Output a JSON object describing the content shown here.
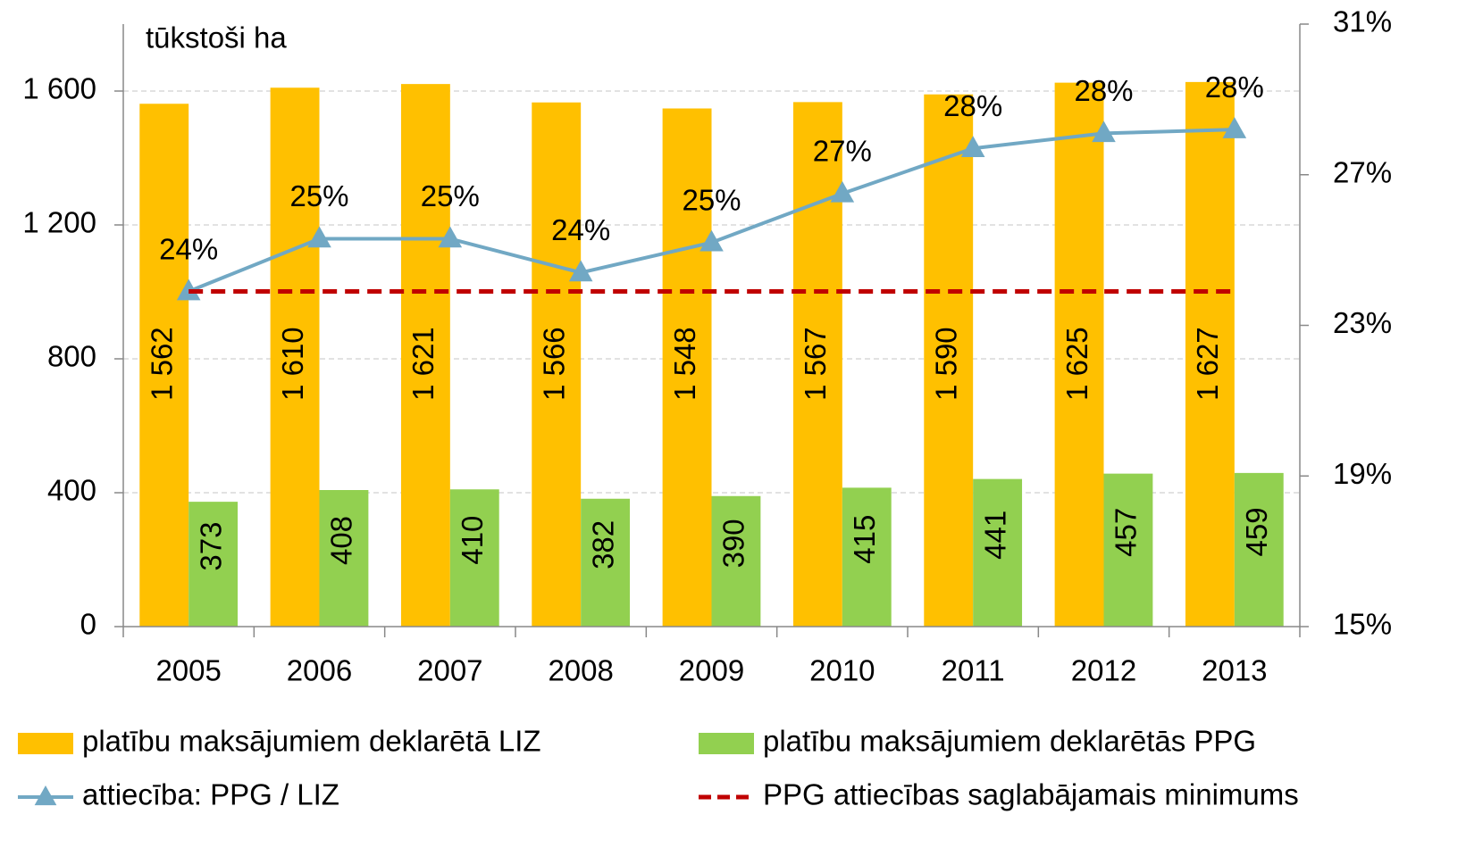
{
  "chart_data": {
    "type": "bar",
    "unit_label": "tūkstoši ha",
    "categories": [
      "2005",
      "2006",
      "2007",
      "2008",
      "2009",
      "2010",
      "2011",
      "2012",
      "2013"
    ],
    "series": [
      {
        "name": "platību maksājumiem deklarētā LIZ",
        "type": "bar",
        "color": "#ffc000",
        "values": [
          1562,
          1610,
          1621,
          1566,
          1548,
          1567,
          1590,
          1625,
          1627
        ],
        "value_labels": [
          "1 562",
          "1 610",
          "1 621",
          "1 566",
          "1 548",
          "1 567",
          "1 590",
          "1 625",
          "1 627"
        ]
      },
      {
        "name": "platību maksājumiem deklarētās PPG",
        "type": "bar",
        "color": "#92d050",
        "values": [
          373,
          408,
          410,
          382,
          390,
          415,
          441,
          457,
          459
        ]
      },
      {
        "name": "attiecība: PPG / LIZ",
        "type": "line",
        "axis": "y2",
        "color": "#71a8c4",
        "marker": "triangle",
        "values": [
          23.9,
          25.3,
          25.3,
          24.4,
          25.2,
          26.5,
          27.7,
          28.1,
          28.2
        ],
        "value_labels": [
          "24%",
          "25%",
          "25%",
          "24%",
          "25%",
          "27%",
          "28%",
          "28%",
          "28%"
        ]
      },
      {
        "name": "PPG attiecības saglabājamais minimums",
        "type": "line",
        "axis": "y2",
        "color": "#c00000",
        "dashed": true,
        "values": [
          23.9,
          23.9,
          23.9,
          23.9,
          23.9,
          23.9,
          23.9,
          23.9,
          23.9
        ]
      }
    ],
    "ylim": [
      0,
      1800
    ],
    "yticks": [
      0,
      400,
      800,
      {
        "value": 1200,
        "label": "1 200"
      },
      {
        "value": 1600,
        "label": "1 600"
      }
    ],
    "y2lim": [
      15,
      31
    ],
    "y2ticks": [
      {
        "value": 15,
        "label": "15%"
      },
      {
        "value": 19,
        "label": "19%"
      },
      {
        "value": 23,
        "label": "23%"
      },
      {
        "value": 27,
        "label": "27%"
      },
      {
        "value": 31,
        "label": "31%"
      }
    ],
    "grid": true,
    "legend": "bottom"
  }
}
